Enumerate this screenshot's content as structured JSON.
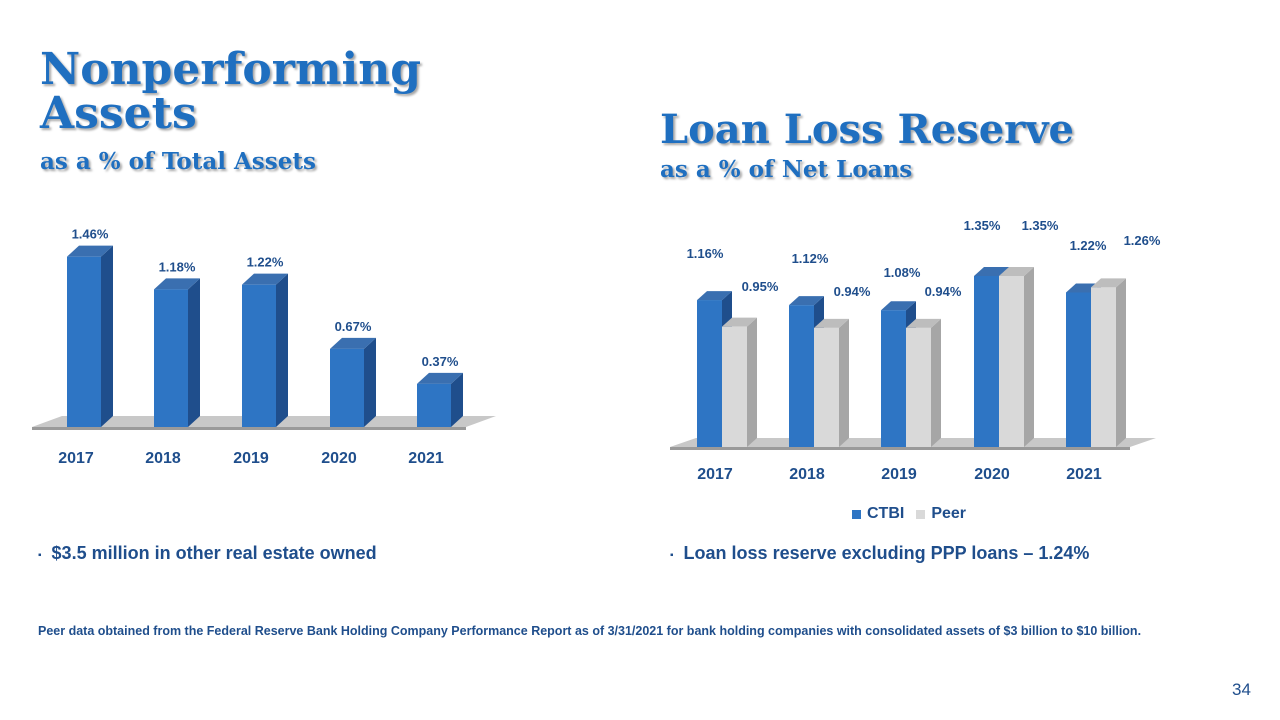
{
  "left_title": "Nonperforming Assets",
  "left_subtitle": "as a % of Total Assets",
  "right_title": "Loan Loss Reserve",
  "right_subtitle": "as a % of Net Loans",
  "legend": {
    "ctbi": "CTBI",
    "peer": "Peer"
  },
  "bullets": {
    "left": "$3.5 million in other real estate owned",
    "right": "Loan loss reserve excluding PPP loans – 1.24%",
    "marker": "▪"
  },
  "footnote": "Peer data obtained from the Federal Reserve Bank Holding Company Performance Report as of 3/31/2021 for bank holding companies with consolidated assets of $3 billion to $10 billion.",
  "page_number": "34",
  "colors": {
    "ctbi": "#2e75c4",
    "ctbi_side": "#1f4e8c",
    "peer": "#d9d9d9",
    "peer_side": "#a6a6a6",
    "title": "#1f6fc0"
  },
  "chart_data": [
    {
      "type": "bar",
      "categories": [
        "2017",
        "2018",
        "2019",
        "2020",
        "2021"
      ],
      "series": [
        {
          "values": [
            1.46,
            1.18,
            1.22,
            0.67,
            0.37
          ],
          "labels": [
            "1.46%",
            "1.18%",
            "1.22%",
            "0.67%",
            "0.37%"
          ]
        }
      ],
      "ylim": [
        0,
        1.5
      ]
    },
    {
      "type": "bar",
      "categories": [
        "2017",
        "2018",
        "2019",
        "2020",
        "2021"
      ],
      "series": [
        {
          "name": "CTBI",
          "values": [
            1.16,
            1.12,
            1.08,
            1.35,
            1.22
          ],
          "labels": [
            "1.16%",
            "1.12%",
            "1.08%",
            "1.35%",
            "1.22%"
          ]
        },
        {
          "name": "Peer",
          "values": [
            0.95,
            0.94,
            0.94,
            1.35,
            1.26
          ],
          "labels": [
            "0.95%",
            "0.94%",
            "0.94%",
            "1.35%",
            "1.26%"
          ]
        }
      ],
      "ylim": [
        0,
        1.5
      ],
      "legend": "bottom"
    }
  ]
}
